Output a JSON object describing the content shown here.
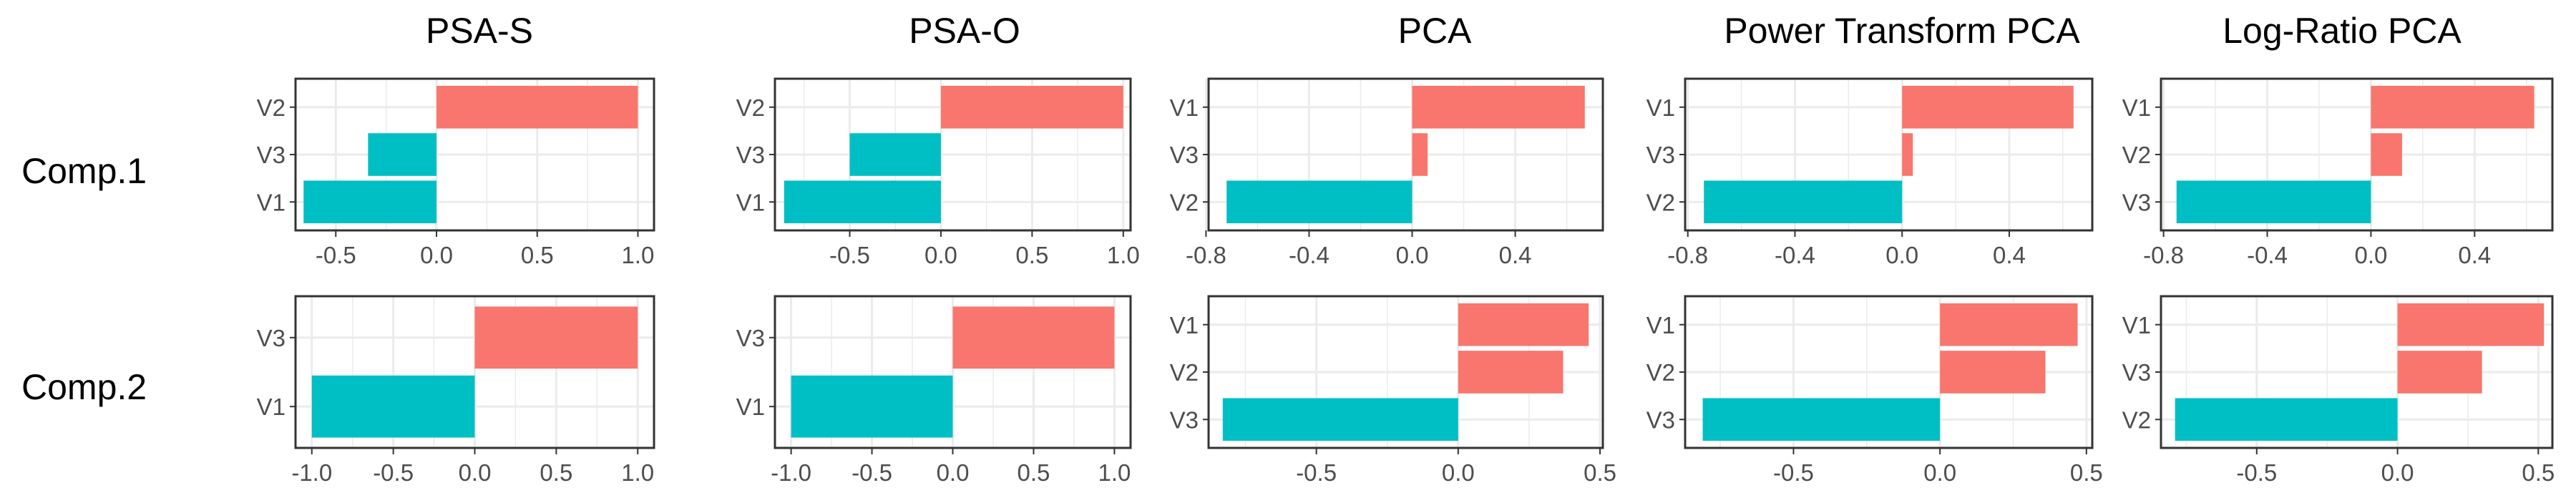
{
  "colors": {
    "positive": "#F8766D",
    "negative": "#00BFC4",
    "grid": "#EBEBEB",
    "frame": "#333333",
    "tick_text": "#4D4D4D"
  },
  "column_titles": [
    "PSA-S",
    "PSA-O",
    "PCA",
    "Power Transform PCA",
    "Log-Ratio PCA"
  ],
  "row_labels": [
    "Comp.1",
    "Comp.2"
  ],
  "chart_data": [
    {
      "type": "bar",
      "orientation": "horizontal",
      "title": "PSA-S",
      "row": "Comp.1",
      "categories": [
        "V2",
        "V3",
        "V1"
      ],
      "values": [
        1.0,
        -0.34,
        -0.66
      ],
      "xlim": [
        -0.7,
        1.08
      ],
      "xticks": [
        -0.5,
        0.0,
        0.5,
        1.0
      ],
      "xtick_labels": [
        "-0.5",
        "0.0",
        "0.5",
        "1.0"
      ],
      "grid": true
    },
    {
      "type": "bar",
      "orientation": "horizontal",
      "title": "PSA-O",
      "row": "Comp.1",
      "categories": [
        "V2",
        "V3",
        "V1"
      ],
      "values": [
        1.0,
        -0.5,
        -0.86
      ],
      "xlim": [
        -0.91,
        1.04
      ],
      "xticks": [
        -0.5,
        0.0,
        0.5,
        1.0
      ],
      "xtick_labels": [
        "-0.5",
        "0.0",
        "0.5",
        "1.0"
      ],
      "grid": true
    },
    {
      "type": "bar",
      "orientation": "horizontal",
      "title": "PCA",
      "row": "Comp.1",
      "categories": [
        "V1",
        "V3",
        "V2"
      ],
      "values": [
        0.67,
        0.06,
        -0.72
      ],
      "xlim": [
        -0.79,
        0.74
      ],
      "xticks": [
        -0.8,
        -0.4,
        0.0,
        0.4
      ],
      "xtick_labels": [
        "-0.8",
        "-0.4",
        "0.0",
        "0.4"
      ],
      "grid": true
    },
    {
      "type": "bar",
      "orientation": "horizontal",
      "title": "Power Transform PCA",
      "row": "Comp.1",
      "categories": [
        "V1",
        "V3",
        "V2"
      ],
      "values": [
        0.64,
        0.04,
        -0.74
      ],
      "xlim": [
        -0.81,
        0.71
      ],
      "xticks": [
        -0.8,
        -0.4,
        0.0,
        0.4
      ],
      "xtick_labels": [
        "-0.8",
        "-0.4",
        "0.0",
        "0.4"
      ],
      "grid": true
    },
    {
      "type": "bar",
      "orientation": "horizontal",
      "title": "Log-Ratio PCA",
      "row": "Comp.1",
      "categories": [
        "V1",
        "V2",
        "V3"
      ],
      "values": [
        0.63,
        0.12,
        -0.75
      ],
      "xlim": [
        -0.81,
        0.7
      ],
      "xticks": [
        -0.8,
        -0.4,
        0.0,
        0.4
      ],
      "xtick_labels": [
        "-0.8",
        "-0.4",
        "0.0",
        "0.4"
      ],
      "grid": true
    },
    {
      "type": "bar",
      "orientation": "horizontal",
      "title": "PSA-S",
      "row": "Comp.2",
      "categories": [
        "V3",
        "V1"
      ],
      "values": [
        1.0,
        -1.0
      ],
      "xlim": [
        -1.1,
        1.1
      ],
      "xticks": [
        -1.0,
        -0.5,
        0.0,
        0.5,
        1.0
      ],
      "xtick_labels": [
        "-1.0",
        "-0.5",
        "0.0",
        "0.5",
        "1.0"
      ],
      "grid": true
    },
    {
      "type": "bar",
      "orientation": "horizontal",
      "title": "PSA-O",
      "row": "Comp.2",
      "categories": [
        "V3",
        "V1"
      ],
      "values": [
        1.0,
        -1.0
      ],
      "xlim": [
        -1.1,
        1.1
      ],
      "xticks": [
        -1.0,
        -0.5,
        0.0,
        0.5,
        1.0
      ],
      "xtick_labels": [
        "-1.0",
        "-0.5",
        "0.0",
        "0.5",
        "1.0"
      ],
      "grid": true
    },
    {
      "type": "bar",
      "orientation": "horizontal",
      "title": "PCA",
      "row": "Comp.2",
      "categories": [
        "V1",
        "V2",
        "V3"
      ],
      "values": [
        0.46,
        0.37,
        -0.83
      ],
      "xlim": [
        -0.88,
        0.51
      ],
      "xticks": [
        -0.5,
        0.0,
        0.5
      ],
      "xtick_labels": [
        "-0.5",
        "0.0",
        "0.5"
      ],
      "grid": true
    },
    {
      "type": "bar",
      "orientation": "horizontal",
      "title": "Power Transform PCA",
      "row": "Comp.2",
      "categories": [
        "V1",
        "V2",
        "V3"
      ],
      "values": [
        0.47,
        0.36,
        -0.81
      ],
      "xlim": [
        -0.87,
        0.52
      ],
      "xticks": [
        -0.5,
        0.0,
        0.5
      ],
      "xtick_labels": [
        "-0.5",
        "0.0",
        "0.5"
      ],
      "grid": true
    },
    {
      "type": "bar",
      "orientation": "horizontal",
      "title": "Log-Ratio PCA",
      "row": "Comp.2",
      "categories": [
        "V1",
        "V3",
        "V2"
      ],
      "values": [
        0.52,
        0.3,
        -0.79
      ],
      "xlim": [
        -0.84,
        0.55
      ],
      "xticks": [
        -0.5,
        0.0,
        0.5
      ],
      "xtick_labels": [
        "-0.5",
        "0.0",
        "0.5"
      ],
      "grid": true
    }
  ]
}
